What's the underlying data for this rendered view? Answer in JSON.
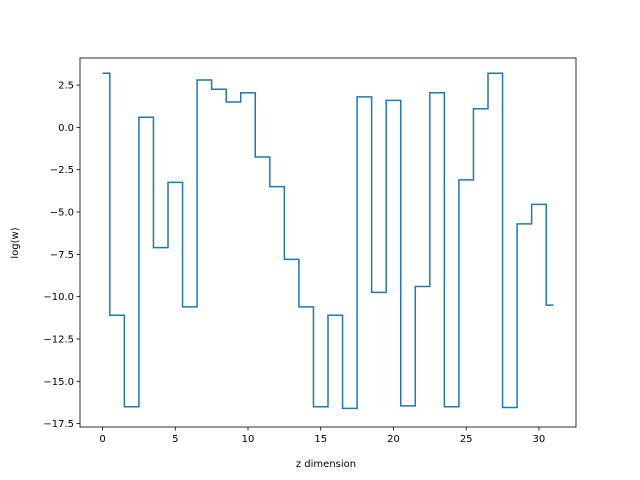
{
  "chart_data": {
    "type": "line",
    "step": "mid",
    "title": "",
    "xlabel": "z dimension",
    "ylabel": "log(w)",
    "xlim": [
      -1.55,
      32.55
    ],
    "ylim": [
      -17.7,
      4.1
    ],
    "xticks": [
      0,
      5,
      10,
      15,
      20,
      25,
      30
    ],
    "xtick_labels": [
      "0",
      "5",
      "10",
      "15",
      "20",
      "25",
      "30"
    ],
    "yticks": [
      2.5,
      0.0,
      -2.5,
      -5.0,
      -7.5,
      -10.0,
      -12.5,
      -15.0,
      -17.5
    ],
    "ytick_labels": [
      "2.5",
      "0.0",
      "−2.5",
      "−5.0",
      "−7.5",
      "−10.0",
      "−12.5",
      "−15.0",
      "−17.5"
    ],
    "grid": false,
    "color": "#1f77b4",
    "series": [
      {
        "x": [
          0,
          1,
          2,
          3,
          4,
          5,
          6,
          7,
          8,
          9,
          10,
          11,
          12,
          13,
          14,
          15,
          16,
          17,
          18,
          19,
          20,
          21,
          22,
          23,
          24,
          25,
          26,
          27,
          28,
          29,
          30,
          31
        ],
        "values": [
          3.2,
          -11.1,
          -16.5,
          0.6,
          -7.1,
          -3.25,
          -10.6,
          2.8,
          2.25,
          1.5,
          2.05,
          -1.75,
          -3.5,
          -7.8,
          -10.6,
          -16.5,
          -11.1,
          -16.6,
          1.8,
          -9.75,
          1.6,
          -16.45,
          -9.4,
          2.05,
          -16.5,
          -3.1,
          1.1,
          3.2,
          -16.55,
          -5.7,
          -4.55,
          -10.5
        ]
      }
    ]
  }
}
